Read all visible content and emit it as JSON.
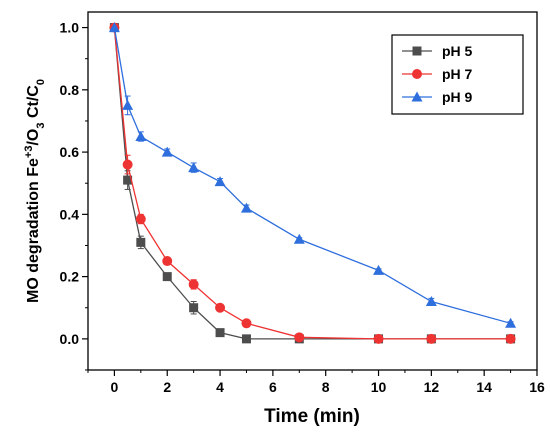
{
  "chart_data": {
    "type": "line",
    "title": "",
    "xlabel": "Time (min)",
    "ylabel": {
      "main": "MO degradation Fe",
      "sup": "+3",
      "mid": "/O",
      "sub": "3",
      "tail": " Ct/C",
      "sub2": "0"
    },
    "xlim": [
      -1,
      16
    ],
    "ylim": [
      -0.1,
      1.05
    ],
    "xticks": [
      0,
      2,
      4,
      6,
      8,
      10,
      12,
      14,
      16
    ],
    "yticks": [
      "0.0",
      "0.2",
      "0.4",
      "0.6",
      "0.8",
      "1.0"
    ],
    "legend_position": "top-right",
    "grid": false,
    "series": [
      {
        "name": "pH 5",
        "color": "#4d4d4d",
        "marker": "square",
        "x": [
          0,
          0.5,
          1,
          2,
          3,
          4,
          5,
          7,
          10,
          12,
          15
        ],
        "y": [
          1.0,
          0.51,
          0.31,
          0.2,
          0.1,
          0.02,
          0.0,
          0.0,
          0.0,
          0.0,
          0.0
        ],
        "err": [
          0,
          0.03,
          0.02,
          0.01,
          0.02,
          0.005,
          0,
          0,
          0,
          0,
          0
        ]
      },
      {
        "name": "pH 7",
        "color": "#ee3333",
        "marker": "circle",
        "x": [
          0,
          0.5,
          1,
          2,
          3,
          4,
          5,
          7,
          10,
          12,
          15
        ],
        "y": [
          1.0,
          0.56,
          0.385,
          0.25,
          0.175,
          0.1,
          0.05,
          0.005,
          0.0,
          0.0,
          0.0
        ],
        "err": [
          0,
          0.03,
          0.015,
          0.01,
          0.015,
          0.005,
          0.005,
          0,
          0,
          0,
          0
        ]
      },
      {
        "name": "pH 9",
        "color": "#2f6fdd",
        "marker": "triangle",
        "x": [
          0,
          0.5,
          1,
          2,
          3,
          4,
          5,
          7,
          10,
          12,
          15
        ],
        "y": [
          1.0,
          0.75,
          0.65,
          0.6,
          0.55,
          0.505,
          0.42,
          0.32,
          0.22,
          0.12,
          0.05
        ],
        "err": [
          0,
          0.03,
          0.015,
          0.01,
          0.015,
          0.01,
          0.01,
          0.005,
          0.005,
          0.01,
          0.005
        ]
      }
    ]
  }
}
